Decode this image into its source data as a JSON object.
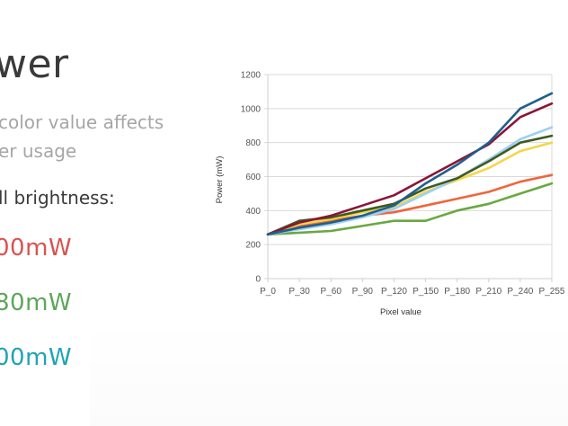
{
  "slide": {
    "title": "wer",
    "subtitle_lines": [
      "color value affects",
      "er usage"
    ],
    "brightness_label": "ll brightness:",
    "metrics": [
      {
        "text": "00mW",
        "color": "#d9534f"
      },
      {
        "text": "80mW",
        "color": "#5ea65b"
      },
      {
        "text": "00mW",
        "color": "#20a3b5"
      }
    ]
  },
  "chart_data": {
    "type": "line",
    "title": "",
    "xlabel": "Pixel value",
    "ylabel": "Power (mW)",
    "categories": [
      "P_0",
      "P_30",
      "P_60",
      "P_90",
      "P_120",
      "P_150",
      "P_180",
      "P_210",
      "P_240",
      "P_255"
    ],
    "ylim": [
      0,
      1200
    ],
    "yticks": [
      0,
      200,
      400,
      600,
      800,
      1000,
      1200
    ],
    "grid": true,
    "legend": "none",
    "series": [
      {
        "name": "green",
        "color": "#6aa83f",
        "values": [
          260,
          270,
          280,
          310,
          340,
          340,
          400,
          440,
          500,
          560
        ]
      },
      {
        "name": "orange",
        "color": "#f0653a",
        "values": [
          260,
          310,
          340,
          370,
          390,
          430,
          470,
          510,
          570,
          610
        ]
      },
      {
        "name": "yellow",
        "color": "#f4d648",
        "values": [
          260,
          320,
          350,
          390,
          420,
          510,
          580,
          650,
          750,
          800
        ]
      },
      {
        "name": "light-blue",
        "color": "#9fd0f0",
        "values": [
          260,
          290,
          320,
          360,
          410,
          500,
          590,
          700,
          820,
          890
        ]
      },
      {
        "name": "dark-green",
        "color": "#3f5a1e",
        "values": [
          260,
          340,
          360,
          400,
          440,
          530,
          590,
          690,
          800,
          840
        ]
      },
      {
        "name": "maroon",
        "color": "#8a1538",
        "values": [
          260,
          330,
          370,
          430,
          490,
          590,
          690,
          790,
          950,
          1030
        ]
      },
      {
        "name": "dark-blue",
        "color": "#1f5f8f",
        "values": [
          260,
          300,
          330,
          370,
          430,
          560,
          670,
          800,
          1000,
          1090
        ]
      }
    ]
  }
}
